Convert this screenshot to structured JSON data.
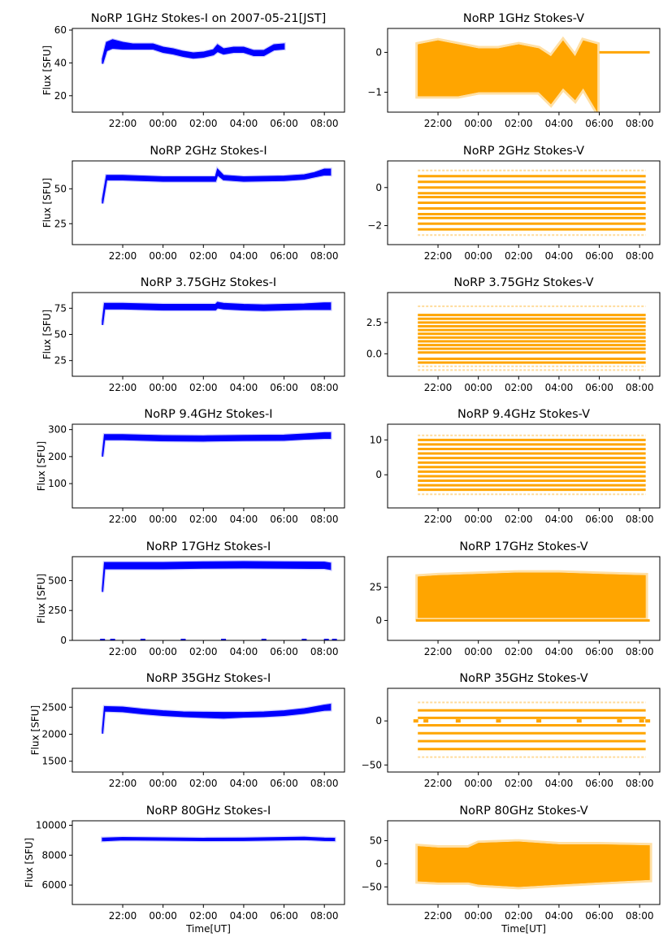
{
  "figure": {
    "x_tick_labels": [
      "22:00",
      "00:00",
      "02:00",
      "04:00",
      "06:00",
      "08:00"
    ],
    "x_label": "Time[UT]",
    "stokes_i_color": "#0000ff",
    "stokes_v_color": "#ffa500"
  },
  "chart_data": [
    {
      "type": "scatter",
      "title": "NoRP 1GHz Stokes-I on 2007-05-21[JST]",
      "ylabel": "Flux [SFU]",
      "xlabel": "",
      "xlim_hours": [
        19.5,
        33.0
      ],
      "ylim": [
        10,
        61
      ],
      "yticks": [
        20,
        40,
        60
      ],
      "ytick_labels": [
        "20",
        "40",
        "60"
      ],
      "xticks_hours": [
        22,
        24,
        26,
        28,
        30,
        32
      ],
      "color": "#0000ff",
      "grid": false,
      "series": [
        {
          "name": "Stokes-I 1GHz",
          "x_hours": [
            21.0,
            21.2,
            21.5,
            22.0,
            22.5,
            23.0,
            23.5,
            24.0,
            24.5,
            25.0,
            25.5,
            26.0,
            26.5,
            26.7,
            27.0,
            27.5,
            28.0,
            28.5,
            29.0,
            29.5,
            30.0
          ],
          "center": [
            41,
            50,
            51.5,
            50.5,
            50,
            50,
            50,
            48,
            47,
            45.5,
            44.5,
            45,
            46.5,
            49,
            47,
            48,
            48,
            46,
            46,
            49.5,
            50
          ],
          "halfwidth": [
            1.5,
            2.5,
            2.5,
            2,
            1.5,
            1.5,
            1.5,
            1.5,
            1.5,
            1.5,
            1.5,
            1.5,
            1.5,
            2,
            1.5,
            1.5,
            1.5,
            1.5,
            1.5,
            1.5,
            1.5
          ]
        }
      ]
    },
    {
      "type": "scatter",
      "title": "NoRP 1GHz Stokes-V",
      "ylabel": "",
      "xlabel": "",
      "xlim_hours": [
        19.5,
        33.0
      ],
      "ylim": [
        -1.5,
        0.6
      ],
      "yticks": [
        -1,
        0
      ],
      "ytick_labels": [
        "−1",
        "0"
      ],
      "xticks_hours": [
        22,
        24,
        26,
        28,
        30,
        32
      ],
      "color": "#ffa500",
      "grid": false,
      "series": [
        {
          "name": "Stokes-V 1GHz",
          "x_hours": [
            21.0,
            22.0,
            23.0,
            24.0,
            25.0,
            26.0,
            27.0,
            27.6,
            28.2,
            28.8,
            29.2,
            29.9
          ],
          "upper": [
            0.2,
            0.3,
            0.2,
            0.1,
            0.1,
            0.2,
            0.1,
            -0.1,
            0.3,
            -0.1,
            0.3,
            0.2
          ],
          "lower": [
            -1.1,
            -1.1,
            -1.1,
            -1.0,
            -1.0,
            -1.0,
            -1.0,
            -1.3,
            -0.9,
            -1.2,
            -0.9,
            -1.5
          ]
        },
        {
          "name": "zero-fill",
          "x_hours_range": [
            30.0,
            32.5
          ],
          "value": 0
        }
      ]
    },
    {
      "type": "scatter",
      "title": "NoRP 2GHz Stokes-I",
      "ylabel": "Flux [SFU]",
      "xlabel": "",
      "xlim_hours": [
        19.5,
        33.0
      ],
      "ylim": [
        10,
        70
      ],
      "yticks": [
        25,
        50
      ],
      "ytick_labels": [
        "25",
        "50"
      ],
      "xticks_hours": [
        22,
        24,
        26,
        28,
        30,
        32
      ],
      "color": "#0000ff",
      "grid": false,
      "series": [
        {
          "name": "Stokes-I 2GHz",
          "x_hours": [
            21.0,
            21.2,
            22.0,
            24.0,
            26.0,
            26.6,
            26.7,
            27.0,
            28.0,
            30.0,
            31.0,
            31.5,
            32.0,
            32.3
          ],
          "center": [
            41,
            58,
            58,
            57,
            57,
            57,
            62,
            58,
            57,
            57.5,
            58.5,
            60,
            62,
            62
          ],
          "halfwidth": [
            1.5,
            1.5,
            1.5,
            1.5,
            1.5,
            1.5,
            2,
            1.5,
            1.5,
            1.5,
            1.5,
            1.5,
            2,
            2
          ]
        }
      ]
    },
    {
      "type": "scatter",
      "title": "NoRP 2GHz Stokes-V",
      "ylabel": "",
      "xlabel": "",
      "xlim_hours": [
        19.5,
        33.0
      ],
      "ylim": [
        -3.0,
        1.4
      ],
      "yticks": [
        -2,
        0
      ],
      "ytick_labels": [
        "−2",
        "0"
      ],
      "xticks_hours": [
        22,
        24,
        26,
        28,
        30,
        32
      ],
      "color": "#ffa500",
      "grid": false,
      "series": [
        {
          "name": "Stokes-V 2GHz (quantized levels)",
          "x_hours_range": [
            21.0,
            32.3
          ],
          "levels": [
            0.6,
            0.3,
            0.0,
            -0.3,
            -0.5,
            -0.8,
            -1.1,
            -1.4,
            -1.6,
            -1.9,
            -2.2
          ],
          "sparse_levels": [
            0.9,
            -2.5
          ]
        }
      ]
    },
    {
      "type": "scatter",
      "title": "NoRP 3.75GHz Stokes-I",
      "ylabel": "Flux [SFU]",
      "xlabel": "",
      "xlim_hours": [
        19.5,
        33.0
      ],
      "ylim": [
        10,
        90
      ],
      "yticks": [
        25,
        50,
        75
      ],
      "ytick_labels": [
        "25",
        "50",
        "75"
      ],
      "xticks_hours": [
        22,
        24,
        26,
        28,
        30,
        32
      ],
      "color": "#0000ff",
      "grid": false,
      "series": [
        {
          "name": "Stokes-I 3.75GHz",
          "x_hours": [
            21.0,
            21.1,
            22.0,
            24.0,
            26.0,
            26.6,
            26.7,
            27.0,
            28.0,
            29.0,
            30.0,
            31.0,
            32.0,
            32.3
          ],
          "center": [
            61,
            77,
            77,
            76,
            76,
            76,
            78,
            77,
            76,
            75.5,
            76,
            76.5,
            77,
            77
          ],
          "halfwidth": [
            2,
            2.5,
            2.5,
            2.5,
            2.5,
            2.5,
            2.5,
            2.5,
            2.5,
            2.5,
            2.5,
            2.5,
            3,
            3
          ]
        }
      ]
    },
    {
      "type": "scatter",
      "title": "NoRP 3.75GHz Stokes-V",
      "ylabel": "",
      "xlabel": "",
      "xlim_hours": [
        19.5,
        33.0
      ],
      "ylim": [
        -1.8,
        4.9
      ],
      "yticks": [
        0.0,
        2.5
      ],
      "ytick_labels": [
        "0.0",
        "2.5"
      ],
      "xticks_hours": [
        22,
        24,
        26,
        28,
        30,
        32
      ],
      "color": "#ffa500",
      "grid": false,
      "series": [
        {
          "name": "Stokes-V 3.75GHz (quantized levels)",
          "x_hours_range": [
            21.0,
            32.3
          ],
          "levels": [
            3.1,
            2.8,
            2.5,
            2.2,
            1.9,
            1.6,
            1.3,
            1.0,
            0.7,
            0.4,
            0.1,
            -0.4,
            -0.7
          ],
          "sparse_levels": [
            3.8,
            -1.0,
            -1.3
          ]
        }
      ]
    },
    {
      "type": "scatter",
      "title": "NoRP 9.4GHz Stokes-I",
      "ylabel": "Flux [SFU]",
      "xlabel": "",
      "xlim_hours": [
        19.5,
        33.0
      ],
      "ylim": [
        10,
        320
      ],
      "yticks": [
        100,
        200,
        300
      ],
      "ytick_labels": [
        "100",
        "200",
        "300"
      ],
      "xticks_hours": [
        22,
        24,
        26,
        28,
        30,
        32
      ],
      "color": "#0000ff",
      "grid": false,
      "series": [
        {
          "name": "Stokes-I 9.4GHz",
          "x_hours": [
            21.0,
            21.1,
            22.0,
            24.0,
            26.0,
            28.0,
            30.0,
            31.0,
            32.0,
            32.3
          ],
          "center": [
            205,
            272,
            272,
            268,
            267,
            269,
            270,
            274,
            278,
            278
          ],
          "halfwidth": [
            5,
            9,
            9,
            9,
            9,
            9,
            9,
            9,
            10,
            10
          ]
        }
      ]
    },
    {
      "type": "scatter",
      "title": "NoRP 9.4GHz Stokes-V",
      "ylabel": "",
      "xlabel": "",
      "xlim_hours": [
        19.5,
        33.0
      ],
      "ylim": [
        -9.5,
        14.5
      ],
      "yticks": [
        0,
        10
      ],
      "ytick_labels": [
        "0",
        "10"
      ],
      "xticks_hours": [
        22,
        24,
        26,
        28,
        30,
        32
      ],
      "color": "#ffa500",
      "grid": false,
      "series": [
        {
          "name": "Stokes-V 9.4GHz (quantized levels)",
          "x_hours_range": [
            21.0,
            32.3
          ],
          "levels": [
            10,
            8.7,
            7.4,
            6.1,
            4.8,
            3.5,
            2.2,
            0.9,
            -0.4,
            -1.7,
            -3.0,
            -4.3
          ],
          "sparse_levels": [
            11.3,
            -5.6
          ]
        }
      ]
    },
    {
      "type": "scatter",
      "title": "NoRP 17GHz Stokes-I",
      "ylabel": "Flux [SFU]",
      "xlabel": "",
      "xlim_hours": [
        19.5,
        33.0
      ],
      "ylim": [
        0,
        700
      ],
      "yticks": [
        0,
        250,
        500
      ],
      "ytick_labels": [
        "0",
        "250",
        "500"
      ],
      "xticks_hours": [
        22,
        24,
        26,
        28,
        30,
        32
      ],
      "color": "#0000ff",
      "grid": false,
      "series": [
        {
          "name": "Stokes-I 17GHz",
          "x_hours": [
            21.0,
            21.1,
            22.0,
            24.0,
            26.0,
            28.0,
            30.0,
            32.0,
            32.3
          ],
          "center": [
            420,
            625,
            625,
            625,
            630,
            632,
            630,
            628,
            620
          ],
          "halfwidth": [
            15,
            25,
            25,
            25,
            25,
            25,
            25,
            25,
            25
          ]
        },
        {
          "name": "zero dropouts",
          "x_hours": [
            21.0,
            21.5,
            23.0,
            25.0,
            27.0,
            29.0,
            31.0,
            32.1,
            32.5
          ],
          "value": 0
        }
      ]
    },
    {
      "type": "scatter",
      "title": "NoRP 17GHz Stokes-V",
      "ylabel": "",
      "xlabel": "",
      "xlim_hours": [
        19.5,
        33.0
      ],
      "ylim": [
        -15,
        48
      ],
      "yticks": [
        0,
        25
      ],
      "ytick_labels": [
        "0",
        "25"
      ],
      "xticks_hours": [
        22,
        24,
        26,
        28,
        30,
        32
      ],
      "color": "#ffa500",
      "grid": false,
      "series": [
        {
          "name": "Stokes-V 17GHz",
          "x_hours": [
            21.0,
            22.0,
            24.0,
            26.0,
            28.0,
            30.0,
            32.3
          ],
          "upper": [
            33,
            34,
            35,
            36,
            36,
            35,
            34
          ],
          "lower": [
            2,
            2,
            2,
            2,
            2,
            2,
            2
          ]
        },
        {
          "name": "zero-fill",
          "x_hours_range": [
            20.9,
            32.5
          ],
          "value": 0
        }
      ]
    },
    {
      "type": "scatter",
      "title": "NoRP 35GHz Stokes-I",
      "ylabel": "Flux [SFU]",
      "xlabel": "",
      "xlim_hours": [
        19.5,
        33.0
      ],
      "ylim": [
        1300,
        2850
      ],
      "yticks": [
        1500,
        2000,
        2500
      ],
      "ytick_labels": [
        "1500",
        "2000",
        "2500"
      ],
      "xticks_hours": [
        22,
        24,
        26,
        28,
        30,
        32
      ],
      "color": "#0000ff",
      "grid": false,
      "series": [
        {
          "name": "Stokes-I 35GHz",
          "x_hours": [
            21.0,
            21.1,
            22.0,
            23.0,
            24.0,
            25.0,
            26.0,
            27.0,
            28.0,
            29.0,
            30.0,
            31.0,
            32.0,
            32.3
          ],
          "center": [
            2050,
            2470,
            2460,
            2420,
            2390,
            2370,
            2360,
            2350,
            2360,
            2370,
            2390,
            2430,
            2490,
            2500
          ],
          "halfwidth": [
            40,
            40,
            40,
            40,
            40,
            40,
            45,
            50,
            40,
            40,
            40,
            40,
            45,
            50
          ]
        }
      ]
    },
    {
      "type": "scatter",
      "title": "NoRP 35GHz Stokes-V",
      "ylabel": "",
      "xlabel": "",
      "xlim_hours": [
        19.5,
        33.0
      ],
      "ylim": [
        -58,
        37
      ],
      "yticks": [
        -50,
        0
      ],
      "ytick_labels": [
        "−50",
        "0"
      ],
      "xticks_hours": [
        22,
        24,
        26,
        28,
        30,
        32
      ],
      "color": "#ffa500",
      "grid": false,
      "series": [
        {
          "name": "Stokes-V 35GHz (quantized levels)",
          "x_hours_range": [
            21.0,
            32.3
          ],
          "levels": [
            12,
            3.5,
            -5,
            -14,
            -23,
            -32
          ],
          "sparse_levels": [
            21,
            -41
          ]
        },
        {
          "name": "zero markers",
          "x_hours": [
            20.9,
            21.4,
            23.0,
            25.0,
            27.0,
            29.0,
            31.0,
            32.1,
            32.4
          ],
          "value": 0
        }
      ]
    },
    {
      "type": "scatter",
      "title": "NoRP 80GHz Stokes-I",
      "ylabel": "Flux [SFU]",
      "xlabel": "Time[UT]",
      "xlim_hours": [
        19.5,
        33.0
      ],
      "ylim": [
        4700,
        10300
      ],
      "yticks": [
        6000,
        8000,
        10000
      ],
      "ytick_labels": [
        "6000",
        "8000",
        "10000"
      ],
      "xticks_hours": [
        22,
        24,
        26,
        28,
        30,
        32
      ],
      "color": "#0000ff",
      "grid": false,
      "series": [
        {
          "name": "Stokes-I 80GHz",
          "x_hours": [
            21.0,
            22.0,
            24.0,
            26.0,
            28.0,
            30.0,
            31.0,
            32.0,
            32.5
          ],
          "center": [
            9050,
            9100,
            9080,
            9050,
            9060,
            9100,
            9120,
            9060,
            9050
          ],
          "halfwidth": [
            80,
            70,
            70,
            70,
            70,
            70,
            70,
            70,
            70
          ]
        }
      ]
    },
    {
      "type": "scatter",
      "title": "NoRP 80GHz Stokes-V",
      "ylabel": "",
      "xlabel": "Time[UT]",
      "xlim_hours": [
        19.5,
        33.0
      ],
      "ylim": [
        -88,
        93
      ],
      "yticks": [
        -50,
        0,
        50
      ],
      "ytick_labels": [
        "−50",
        "0",
        "50"
      ],
      "xticks_hours": [
        22,
        24,
        26,
        28,
        30,
        32
      ],
      "color": "#ffa500",
      "grid": false,
      "series": [
        {
          "name": "Stokes-V 80GHz",
          "x_hours": [
            21.0,
            22.0,
            23.5,
            24.0,
            26.0,
            28.0,
            30.0,
            32.5
          ],
          "upper": [
            38,
            35,
            35,
            45,
            48,
            42,
            42,
            40
          ],
          "lower": [
            -38,
            -40,
            -40,
            -45,
            -50,
            -45,
            -40,
            -35
          ]
        }
      ]
    }
  ]
}
